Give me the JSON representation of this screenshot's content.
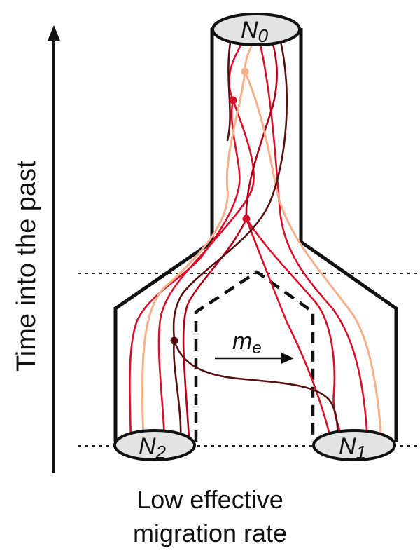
{
  "axis": {
    "label": "Time into the past"
  },
  "populations": {
    "ancestral": {
      "symbol": "N",
      "subscript": "0"
    },
    "left": {
      "symbol": "N",
      "subscript": "2"
    },
    "right": {
      "symbol": "N",
      "subscript": "1"
    }
  },
  "migration": {
    "symbol": "m",
    "subscript": "e"
  },
  "caption": {
    "line1": "Low effective",
    "line2": "migration rate"
  },
  "colors": {
    "outline": "#111111",
    "lineage_red": "#d8102a",
    "lineage_crimson": "#b3001b",
    "lineage_dark": "#5a0f0f",
    "lineage_peach": "#f6b08a",
    "ellipse_fill": "#e3e3e3"
  }
}
